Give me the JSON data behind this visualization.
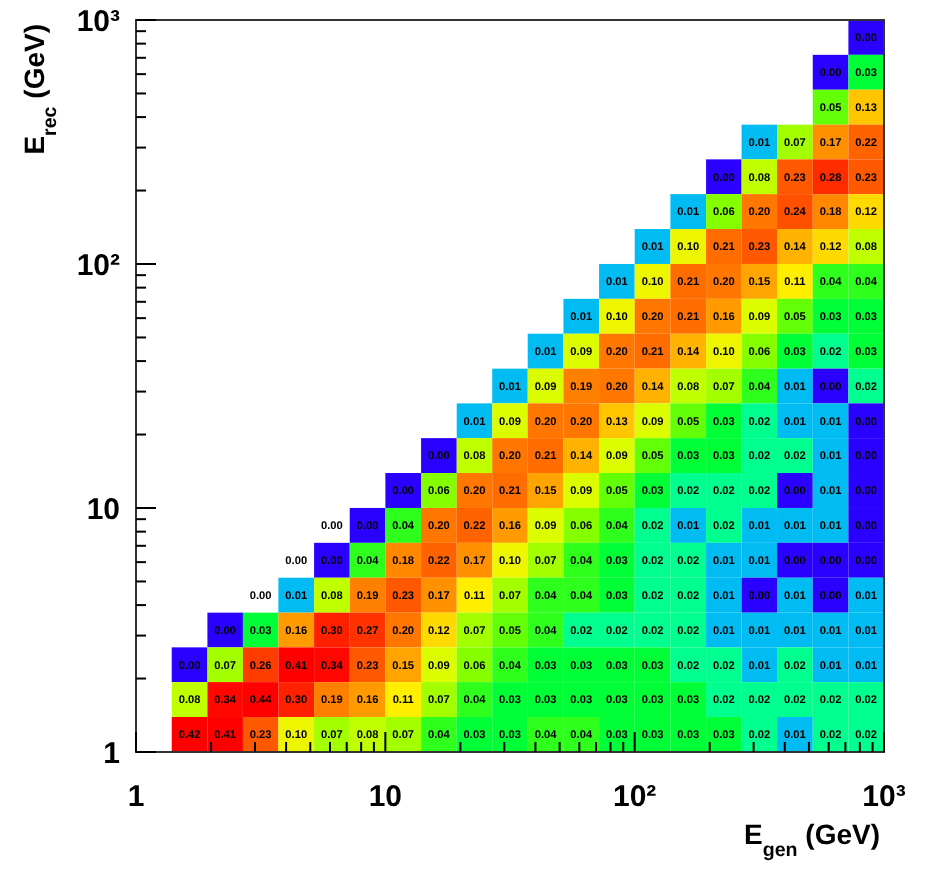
{
  "chart_data": {
    "type": "heatmap",
    "xlabel": "E$_{gen}$ (GeV)",
    "ylabel": "E$_{rec}$ (GeV)",
    "x": [
      1.18,
      1.64,
      2.28,
      3.16,
      4.39,
      6.11,
      8.48,
      11.8,
      16.4,
      22.8,
      31.6,
      43.9,
      61.1,
      84.8,
      118,
      164,
      228,
      316,
      439,
      611,
      848
    ],
    "y": [
      848,
      611,
      439,
      316,
      228,
      164,
      118,
      84.8,
      61.1,
      43.9,
      31.6,
      22.8,
      16.4,
      11.8,
      8.48,
      6.11,
      4.39,
      3.16,
      2.28,
      1.64,
      1.18
    ],
    "log": "xy",
    "data_labels": true,
    "xlim": [
      1,
      1000
    ],
    "ylim": [
      1,
      1000
    ],
    "xticks": [
      1,
      {
        "value": 2,
        "label": null
      },
      {
        "value": 3,
        "label": null
      },
      {
        "value": 4,
        "label": null
      },
      {
        "value": 5,
        "label": null
      },
      {
        "value": 6,
        "label": null
      },
      {
        "value": 7,
        "label": null
      },
      {
        "value": 8,
        "label": null
      },
      {
        "value": 9,
        "label": null
      },
      10,
      {
        "value": 20,
        "label": null
      },
      {
        "value": 30,
        "label": null
      },
      {
        "value": 40,
        "label": null
      },
      {
        "value": 50,
        "label": null
      },
      {
        "value": 60,
        "label": null
      },
      {
        "value": 70,
        "label": null
      },
      {
        "value": 80,
        "label": null
      },
      {
        "value": 90,
        "label": null
      },
      {
        "value": 100,
        "label": "10²"
      },
      {
        "value": 200,
        "label": null
      },
      {
        "value": 300,
        "label": null
      },
      {
        "value": 400,
        "label": null
      },
      {
        "value": 500,
        "label": null
      },
      {
        "value": 600,
        "label": null
      },
      {
        "value": 700,
        "label": null
      },
      {
        "value": 800,
        "label": null
      },
      {
        "value": 900,
        "label": null
      },
      {
        "value": 1000,
        "label": "10³"
      }
    ],
    "yticks": [
      1,
      {
        "value": 2,
        "label": null
      },
      {
        "value": 3,
        "label": null
      },
      {
        "value": 4,
        "label": null
      },
      {
        "value": 5,
        "label": null
      },
      {
        "value": 6,
        "label": null
      },
      {
        "value": 7,
        "label": null
      },
      {
        "value": 8,
        "label": null
      },
      {
        "value": 9,
        "label": null
      },
      10,
      {
        "value": 20,
        "label": null
      },
      {
        "value": 30,
        "label": null
      },
      {
        "value": 40,
        "label": null
      },
      {
        "value": 50,
        "label": null
      },
      {
        "value": 60,
        "label": null
      },
      {
        "value": 70,
        "label": null
      },
      {
        "value": 80,
        "label": null
      },
      {
        "value": 90,
        "label": null
      },
      {
        "value": 100,
        "label": "10²"
      },
      {
        "value": 200,
        "label": null
      },
      {
        "value": 300,
        "label": null
      },
      {
        "value": 400,
        "label": null
      },
      {
        "value": 500,
        "label": null
      },
      {
        "value": 600,
        "label": null
      },
      {
        "value": 700,
        "label": null
      },
      {
        "value": 800,
        "label": null
      },
      {
        "value": 900,
        "label": null
      },
      {
        "value": 1000,
        "label": "10³"
      }
    ],
    "cells": [
      [
        null,
        null,
        null,
        null,
        null,
        null,
        null,
        null,
        null,
        null,
        null,
        null,
        null,
        null,
        null,
        null,
        null,
        null,
        null,
        null,
        0
      ],
      [
        null,
        null,
        null,
        null,
        null,
        null,
        null,
        null,
        null,
        null,
        null,
        null,
        null,
        null,
        null,
        null,
        null,
        null,
        null,
        0,
        0.03
      ],
      [
        null,
        null,
        null,
        null,
        null,
        null,
        null,
        null,
        null,
        null,
        null,
        null,
        null,
        null,
        null,
        null,
        null,
        null,
        null,
        0.05,
        0.13
      ],
      [
        null,
        null,
        null,
        null,
        null,
        null,
        null,
        null,
        null,
        null,
        null,
        null,
        null,
        null,
        null,
        null,
        null,
        0.01,
        0.07,
        0.17,
        0.22
      ],
      [
        null,
        null,
        null,
        null,
        null,
        null,
        null,
        null,
        null,
        null,
        null,
        null,
        null,
        null,
        null,
        null,
        0,
        0.08,
        0.23,
        0.28,
        0.23
      ],
      [
        null,
        null,
        null,
        null,
        null,
        null,
        null,
        null,
        null,
        null,
        null,
        null,
        null,
        null,
        null,
        0.01,
        0.06,
        0.2,
        0.24,
        0.18,
        0.12
      ],
      [
        null,
        null,
        null,
        null,
        null,
        null,
        null,
        null,
        null,
        null,
        null,
        null,
        null,
        null,
        0.01,
        0.1,
        0.21,
        0.23,
        0.14,
        0.12,
        0.08
      ],
      [
        null,
        null,
        null,
        null,
        null,
        null,
        null,
        null,
        null,
        null,
        null,
        null,
        null,
        0.01,
        0.1,
        0.21,
        0.2,
        0.15,
        0.11,
        0.04,
        0.04
      ],
      [
        null,
        null,
        null,
        null,
        null,
        null,
        null,
        null,
        null,
        null,
        null,
        null,
        0.01,
        0.1,
        0.2,
        0.21,
        0.16,
        0.09,
        0.05,
        0.03,
        0.03
      ],
      [
        null,
        null,
        null,
        null,
        null,
        null,
        null,
        null,
        null,
        null,
        null,
        0.01,
        0.09,
        0.2,
        0.21,
        0.14,
        0.1,
        0.06,
        0.03,
        0.02,
        0.03
      ],
      [
        null,
        null,
        null,
        null,
        null,
        null,
        null,
        null,
        null,
        null,
        0.01,
        0.09,
        0.19,
        0.2,
        0.14,
        0.08,
        0.07,
        0.04,
        0.01,
        0,
        0.02
      ],
      [
        null,
        null,
        null,
        null,
        null,
        null,
        null,
        null,
        null,
        0.01,
        0.09,
        0.2,
        0.2,
        0.13,
        0.09,
        0.05,
        0.03,
        0.02,
        0.01,
        0.01,
        0
      ],
      [
        null,
        null,
        null,
        null,
        null,
        null,
        null,
        null,
        0,
        0.08,
        0.2,
        0.21,
        0.14,
        0.09,
        0.05,
        0.03,
        0.03,
        0.02,
        0.02,
        0.01,
        0
      ],
      [
        null,
        null,
        null,
        null,
        null,
        null,
        null,
        0,
        0.06,
        0.2,
        0.21,
        0.15,
        0.09,
        0.05,
        0.03,
        0.02,
        0.02,
        0.02,
        0,
        0.01,
        0
      ],
      [
        null,
        null,
        null,
        null,
        null,
        null,
        0,
        0.04,
        0.2,
        0.22,
        0.16,
        0.09,
        0.06,
        0.04,
        0.02,
        0.01,
        0.02,
        0.01,
        0.01,
        0.01,
        0
      ],
      [
        null,
        null,
        null,
        null,
        null,
        0,
        0.04,
        0.18,
        0.22,
        0.17,
        0.1,
        0.07,
        0.04,
        0.03,
        0.02,
        0.02,
        0.01,
        0.01,
        0,
        0,
        0
      ],
      [
        null,
        null,
        null,
        null,
        0.01,
        0.08,
        0.19,
        0.23,
        0.17,
        0.11,
        0.07,
        0.04,
        0.04,
        0.03,
        0.02,
        0.02,
        0.01,
        0,
        0.01,
        0,
        0.01
      ],
      [
        null,
        null,
        0,
        0.03,
        0.16,
        0.3,
        0.27,
        0.2,
        0.12,
        0.07,
        0.05,
        0.04,
        0.02,
        0.02,
        0.02,
        0.02,
        0.01,
        0.01,
        0.01,
        0.01,
        0.01
      ],
      [
        null,
        0,
        0.07,
        0.26,
        0.41,
        0.34,
        0.23,
        0.15,
        0.09,
        0.06,
        0.04,
        0.03,
        0.03,
        0.03,
        0.03,
        0.02,
        0.02,
        0.01,
        0.02,
        0.01,
        0.01
      ],
      [
        null,
        0.08,
        0.34,
        0.44,
        0.3,
        0.19,
        0.16,
        0.11,
        0.07,
        0.04,
        0.03,
        0.03,
        0.03,
        0.03,
        0.03,
        0.03,
        0.02,
        0.02,
        0.02,
        0.02,
        0.02
      ],
      [
        null,
        0.42,
        0.41,
        0.23,
        0.1,
        0.07,
        0.08,
        0.07,
        0.04,
        0.03,
        0.03,
        0.04,
        0.04,
        0.03,
        0.03,
        0.03,
        0.03,
        0.02,
        0.01,
        0.02,
        0.02
      ]
    ],
    "cell_labels": [
      [
        null,
        null,
        null,
        null,
        null,
        null,
        null,
        null,
        null,
        null,
        null,
        null,
        null,
        null,
        null,
        null,
        null,
        null,
        null,
        null,
        "0.00"
      ],
      [
        null,
        null,
        null,
        null,
        null,
        null,
        null,
        null,
        null,
        null,
        null,
        null,
        null,
        null,
        null,
        null,
        null,
        null,
        null,
        "0.00",
        "0.03"
      ],
      [
        null,
        null,
        null,
        null,
        null,
        null,
        null,
        null,
        null,
        null,
        null,
        null,
        null,
        null,
        null,
        null,
        null,
        null,
        null,
        "0.05",
        "0.13"
      ],
      [
        null,
        null,
        null,
        null,
        null,
        null,
        null,
        null,
        null,
        null,
        null,
        null,
        null,
        null,
        null,
        null,
        null,
        "0.01",
        "0.07",
        "0.17",
        "0.22"
      ],
      [
        null,
        null,
        null,
        null,
        null,
        null,
        null,
        null,
        null,
        null,
        null,
        null,
        null,
        null,
        null,
        null,
        "0.00",
        "0.08",
        "0.23",
        "0.28",
        "0.23"
      ],
      [
        null,
        null,
        null,
        null,
        null,
        null,
        null,
        null,
        null,
        null,
        null,
        null,
        null,
        null,
        null,
        "0.01",
        "0.06",
        "0.20",
        "0.24",
        "0.18",
        "0.12"
      ],
      [
        null,
        null,
        null,
        null,
        null,
        null,
        null,
        null,
        null,
        null,
        null,
        null,
        null,
        null,
        "0.01",
        "0.10",
        "0.21",
        "0.23",
        "0.14",
        "0.12",
        "0.08"
      ],
      [
        null,
        null,
        null,
        null,
        null,
        null,
        null,
        null,
        null,
        null,
        null,
        null,
        null,
        "0.01",
        "0.10",
        "0.21",
        "0.20",
        "0.15",
        "0.11",
        "0.04",
        "0.04"
      ],
      [
        null,
        null,
        null,
        null,
        null,
        null,
        null,
        null,
        null,
        null,
        null,
        null,
        "0.01",
        "0.10",
        "0.20",
        "0.21",
        "0.16",
        "0.09",
        "0.05",
        "0.03",
        "0.03"
      ],
      [
        null,
        null,
        null,
        null,
        null,
        null,
        null,
        null,
        null,
        null,
        null,
        "0.01",
        "0.09",
        "0.20",
        "0.21",
        "0.14",
        "0.10",
        "0.06",
        "0.03",
        "0.02",
        "0.03"
      ],
      [
        null,
        null,
        null,
        null,
        null,
        null,
        null,
        null,
        null,
        null,
        "0.01",
        "0.09",
        "0.19",
        "0.20",
        "0.14",
        "0.08",
        "0.07",
        "0.04",
        "0.01",
        "0.00",
        "0.02"
      ],
      [
        null,
        null,
        null,
        null,
        null,
        null,
        null,
        null,
        null,
        "0.01",
        "0.09",
        "0.20",
        "0.20",
        "0.13",
        "0.09",
        "0.05",
        "0.03",
        "0.02",
        "0.01",
        "0.01",
        "0.00"
      ],
      [
        null,
        null,
        null,
        null,
        null,
        null,
        null,
        null,
        "0.00",
        "0.08",
        "0.20",
        "0.21",
        "0.14",
        "0.09",
        "0.05",
        "0.03",
        "0.03",
        "0.02",
        "0.02",
        "0.01",
        "0.00"
      ],
      [
        null,
        null,
        null,
        null,
        null,
        null,
        null,
        "0.00",
        "0.06",
        "0.20",
        "0.21",
        "0.15",
        "0.09",
        "0.05",
        "0.03",
        "0.02",
        "0.02",
        "0.02",
        "0.00",
        "0.01",
        "0.00"
      ],
      [
        null,
        null,
        null,
        null,
        null,
        "0.00",
        "0.00",
        "0.04",
        "0.20",
        "0.22",
        "0.16",
        "0.09",
        "0.06",
        "0.04",
        "0.02",
        "0.01",
        "0.02",
        "0.01",
        "0.01",
        "0.01",
        "0.00"
      ],
      [
        null,
        null,
        null,
        null,
        "0.00",
        "0.00",
        "0.04",
        "0.18",
        "0.22",
        "0.17",
        "0.10",
        "0.07",
        "0.04",
        "0.03",
        "0.02",
        "0.02",
        "0.01",
        "0.01",
        "0.00",
        "0.00",
        "0.00"
      ],
      [
        null,
        null,
        null,
        "0.00",
        "0.01",
        "0.08",
        "0.19",
        "0.23",
        "0.17",
        "0.11",
        "0.07",
        "0.04",
        "0.04",
        "0.03",
        "0.02",
        "0.02",
        "0.01",
        "0.00",
        "0.01",
        "0.00",
        "0.01"
      ],
      [
        null,
        null,
        "0.00",
        "0.03",
        "0.16",
        "0.30",
        "0.27",
        "0.20",
        "0.12",
        "0.07",
        "0.05",
        "0.04",
        "0.02",
        "0.02",
        "0.02",
        "0.02",
        "0.01",
        "0.01",
        "0.01",
        "0.01",
        "0.01"
      ],
      [
        null,
        "0.00",
        "0.07",
        "0.26",
        "0.41",
        "0.34",
        "0.23",
        "0.15",
        "0.09",
        "0.06",
        "0.04",
        "0.03",
        "0.03",
        "0.03",
        "0.03",
        "0.02",
        "0.02",
        "0.01",
        "0.02",
        "0.01",
        "0.01"
      ],
      [
        null,
        "0.08",
        "0.34",
        "0.44",
        "0.30",
        "0.19",
        "0.16",
        "0.11",
        "0.07",
        "0.04",
        "0.03",
        "0.03",
        "0.03",
        "0.03",
        "0.03",
        "0.03",
        "0.02",
        "0.02",
        "0.02",
        "0.02",
        "0.02"
      ],
      [
        null,
        "0.42",
        "0.41",
        "0.23",
        "0.10",
        "0.07",
        "0.08",
        "0.07",
        "0.04",
        "0.03",
        "0.03",
        "0.04",
        "0.04",
        "0.03",
        "0.03",
        "0.03",
        "0.03",
        "0.02",
        "0.01",
        "0.02",
        "0.02"
      ]
    ]
  }
}
